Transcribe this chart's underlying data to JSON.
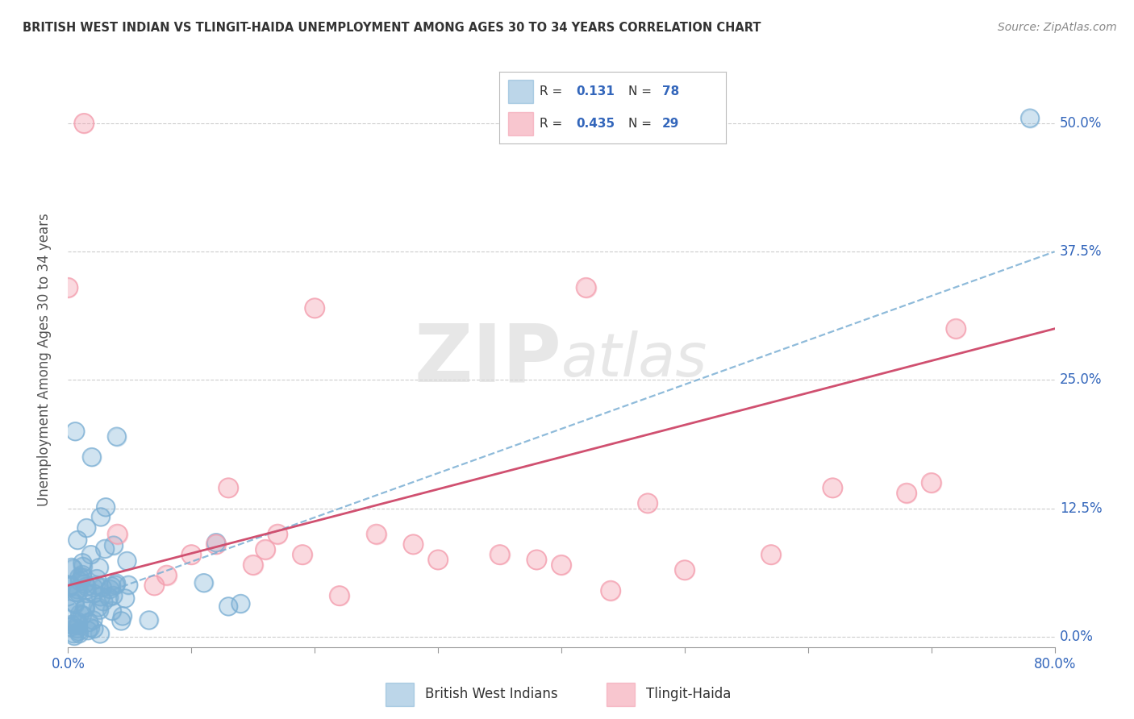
{
  "title": "BRITISH WEST INDIAN VS TLINGIT-HAIDA UNEMPLOYMENT AMONG AGES 30 TO 34 YEARS CORRELATION CHART",
  "source": "Source: ZipAtlas.com",
  "ylabel": "Unemployment Among Ages 30 to 34 years",
  "xlim": [
    0.0,
    0.8
  ],
  "ylim": [
    -0.01,
    0.55
  ],
  "yticks": [
    0.0,
    0.125,
    0.25,
    0.375,
    0.5
  ],
  "yticklabels": [
    "0.0%",
    "12.5%",
    "25.0%",
    "37.5%",
    "50.0%"
  ],
  "blue_color": "#7BAFD4",
  "pink_color": "#F4A0B0",
  "blue_R": 0.131,
  "blue_N": 78,
  "pink_R": 0.435,
  "pink_N": 29,
  "watermark_zip": "ZIP",
  "watermark_atlas": "atlas",
  "legend_label_blue": "British West Indians",
  "legend_label_pink": "Tlingit-Haida",
  "background_color": "#FFFFFF",
  "grid_color": "#CCCCCC",
  "title_color": "#333333",
  "tick_color": "#3366BB",
  "line_blue_color": "#7BAFD4",
  "line_pink_color": "#D05070",
  "blue_line_start_y": 0.03,
  "blue_line_end_y": 0.375,
  "pink_line_start_y": 0.05,
  "pink_line_end_y": 0.3,
  "xtick_positions": [
    0.0,
    0.1,
    0.2,
    0.3,
    0.4,
    0.5,
    0.6,
    0.7,
    0.8
  ],
  "xtick_show": [
    true,
    false,
    false,
    false,
    false,
    false,
    false,
    false,
    true
  ]
}
